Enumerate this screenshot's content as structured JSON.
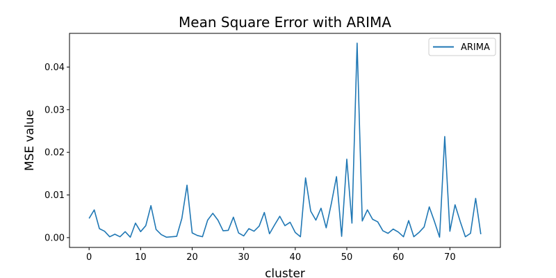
{
  "chart_data": {
    "type": "line",
    "title": "Mean Square Error with ARIMA",
    "xlabel": "cluster",
    "ylabel": "MSE value",
    "xlim": [
      -3.8,
      79.8
    ],
    "ylim": [
      -0.0023,
      0.0479
    ],
    "xticks": [
      0,
      10,
      20,
      30,
      40,
      50,
      60,
      70
    ],
    "xtick_labels": [
      "0",
      "10",
      "20",
      "30",
      "40",
      "50",
      "60",
      "70"
    ],
    "yticks": [
      0.0,
      0.01,
      0.02,
      0.03,
      0.04
    ],
    "ytick_labels": [
      "0.00",
      "0.01",
      "0.02",
      "0.03",
      "0.04"
    ],
    "grid": false,
    "legend_position": "top-right",
    "series": [
      {
        "name": "ARIMA",
        "color": "#1f77b4",
        "x": [
          0,
          1,
          2,
          3,
          4,
          5,
          6,
          7,
          8,
          9,
          10,
          11,
          12,
          13,
          14,
          15,
          16,
          17,
          18,
          19,
          20,
          21,
          22,
          23,
          24,
          25,
          26,
          27,
          28,
          29,
          30,
          31,
          32,
          33,
          34,
          35,
          36,
          37,
          38,
          39,
          40,
          41,
          42,
          43,
          44,
          45,
          46,
          47,
          48,
          49,
          50,
          51,
          52,
          53,
          54,
          55,
          56,
          57,
          58,
          59,
          60,
          61,
          62,
          63,
          64,
          65,
          66,
          67,
          68,
          69,
          70,
          71,
          72,
          73,
          74,
          75,
          76
        ],
        "values": [
          0.0045,
          0.0065,
          0.0021,
          0.0015,
          0.0002,
          0.0008,
          0.0002,
          0.0014,
          0.0001,
          0.0034,
          0.0014,
          0.0028,
          0.0075,
          0.0019,
          0.0007,
          0.0001,
          0.0002,
          0.0003,
          0.0045,
          0.0123,
          0.0011,
          0.0005,
          0.0002,
          0.0041,
          0.0057,
          0.0041,
          0.0016,
          0.0017,
          0.0048,
          0.0011,
          0.0004,
          0.0021,
          0.0015,
          0.0027,
          0.0059,
          0.0009,
          0.003,
          0.005,
          0.0028,
          0.0036,
          0.0012,
          0.0002,
          0.014,
          0.0062,
          0.0041,
          0.0069,
          0.0023,
          0.008,
          0.0143,
          0.0003,
          0.0184,
          0.0034,
          0.0456,
          0.0039,
          0.0065,
          0.0043,
          0.0037,
          0.0016,
          0.001,
          0.002,
          0.0013,
          0.0002,
          0.004,
          0.0002,
          0.0012,
          0.0025,
          0.0072,
          0.0038,
          0.0001,
          0.0237,
          0.0015,
          0.0077,
          0.0038,
          0.0002,
          0.001,
          0.0092,
          0.0008
        ]
      }
    ]
  }
}
